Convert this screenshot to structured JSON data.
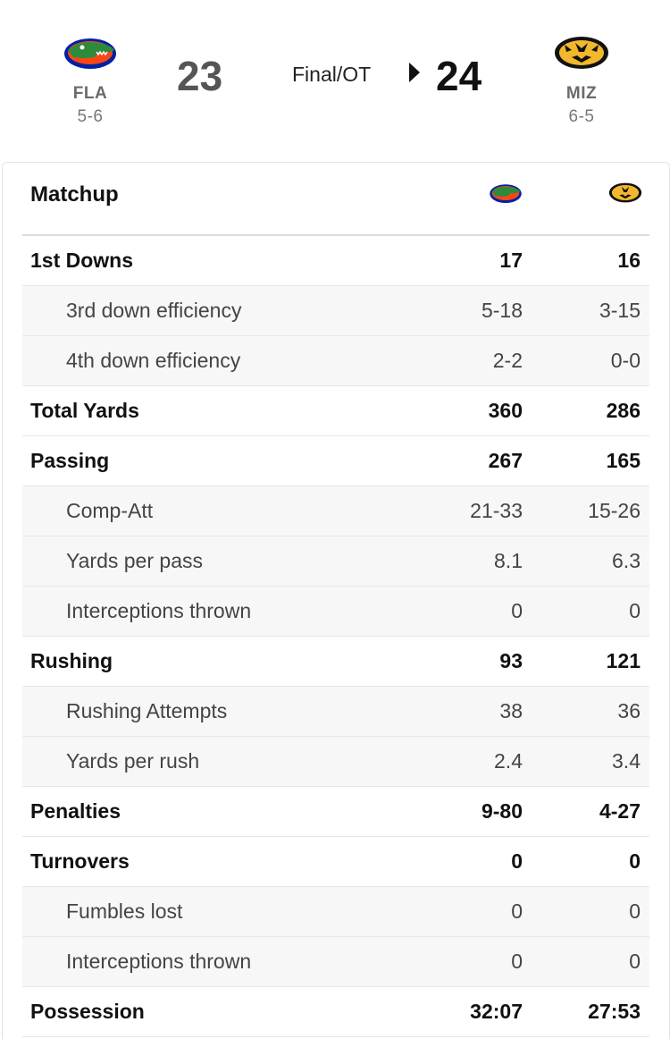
{
  "game": {
    "status": "Final/OT",
    "away": {
      "abbr": "FLA",
      "record": "5-6",
      "score": "23",
      "logo_icon": "gator-logo-icon",
      "color": "#0021A5"
    },
    "home": {
      "abbr": "MIZ",
      "record": "6-5",
      "score": "24",
      "logo_icon": "tiger-logo-icon",
      "color": "#F1B82D"
    },
    "winner_indicator_icon": "winner-arrow-icon"
  },
  "matchup": {
    "title": "Matchup",
    "rows": [
      {
        "label": "1st Downs",
        "away": "17",
        "home": "16",
        "type": "main"
      },
      {
        "label": "3rd down efficiency",
        "away": "5-18",
        "home": "3-15",
        "type": "sub"
      },
      {
        "label": "4th down efficiency",
        "away": "2-2",
        "home": "0-0",
        "type": "sub"
      },
      {
        "label": "Total Yards",
        "away": "360",
        "home": "286",
        "type": "main"
      },
      {
        "label": "Passing",
        "away": "267",
        "home": "165",
        "type": "main"
      },
      {
        "label": "Comp-Att",
        "away": "21-33",
        "home": "15-26",
        "type": "sub"
      },
      {
        "label": "Yards per pass",
        "away": "8.1",
        "home": "6.3",
        "type": "sub"
      },
      {
        "label": "Interceptions thrown",
        "away": "0",
        "home": "0",
        "type": "sub"
      },
      {
        "label": "Rushing",
        "away": "93",
        "home": "121",
        "type": "main"
      },
      {
        "label": "Rushing Attempts",
        "away": "38",
        "home": "36",
        "type": "sub"
      },
      {
        "label": "Yards per rush",
        "away": "2.4",
        "home": "3.4",
        "type": "sub"
      },
      {
        "label": "Penalties",
        "away": "9-80",
        "home": "4-27",
        "type": "main"
      },
      {
        "label": "Turnovers",
        "away": "0",
        "home": "0",
        "type": "main"
      },
      {
        "label": "Fumbles lost",
        "away": "0",
        "home": "0",
        "type": "sub"
      },
      {
        "label": "Interceptions thrown",
        "away": "0",
        "home": "0",
        "type": "sub"
      },
      {
        "label": "Possession",
        "away": "32:07",
        "home": "27:53",
        "type": "main"
      }
    ]
  }
}
